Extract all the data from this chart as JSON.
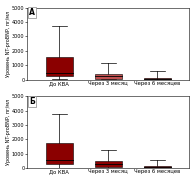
{
  "panel_labels": [
    "А",
    "Б"
  ],
  "categories": [
    "До КВА",
    "Через 3 месяц",
    "Через 6 месяцев"
  ],
  "panel_A": {
    "boxes": [
      {
        "q1": 250,
        "median": 500,
        "q3": 1600,
        "whisker_low": 50,
        "whisker_high": 3700
      },
      {
        "q1": 80,
        "median": 250,
        "q3": 420,
        "whisker_low": 30,
        "whisker_high": 1150
      },
      {
        "q1": 30,
        "median": 80,
        "q3": 130,
        "whisker_low": 10,
        "whisker_high": 600
      }
    ]
  },
  "panel_B": {
    "boxes": [
      {
        "q1": 300,
        "median": 600,
        "q3": 1750,
        "whisker_low": 50,
        "whisker_high": 3750
      },
      {
        "q1": 100,
        "median": 300,
        "q3": 500,
        "whisker_low": 30,
        "whisker_high": 1300
      },
      {
        "q1": 30,
        "median": 80,
        "q3": 180,
        "whisker_low": 10,
        "whisker_high": 600
      }
    ]
  },
  "ylim": [
    0,
    5000
  ],
  "yticks": [
    0,
    1000,
    2000,
    3000,
    4000,
    5000
  ],
  "ylabel": "Уровень NT-proBNP, пг/мл",
  "box_color_A": [
    "#8B0000",
    "#c05050",
    "#8B0000"
  ],
  "box_color_B": [
    "#8B0000",
    "#8B0000",
    "#8B0000"
  ],
  "box_width": 0.55,
  "bg_color": "#ffffff",
  "label_fontsize": 3.8,
  "tick_fontsize": 3.5,
  "ylabel_fontsize": 3.5,
  "panel_label_fontsize": 5.5
}
